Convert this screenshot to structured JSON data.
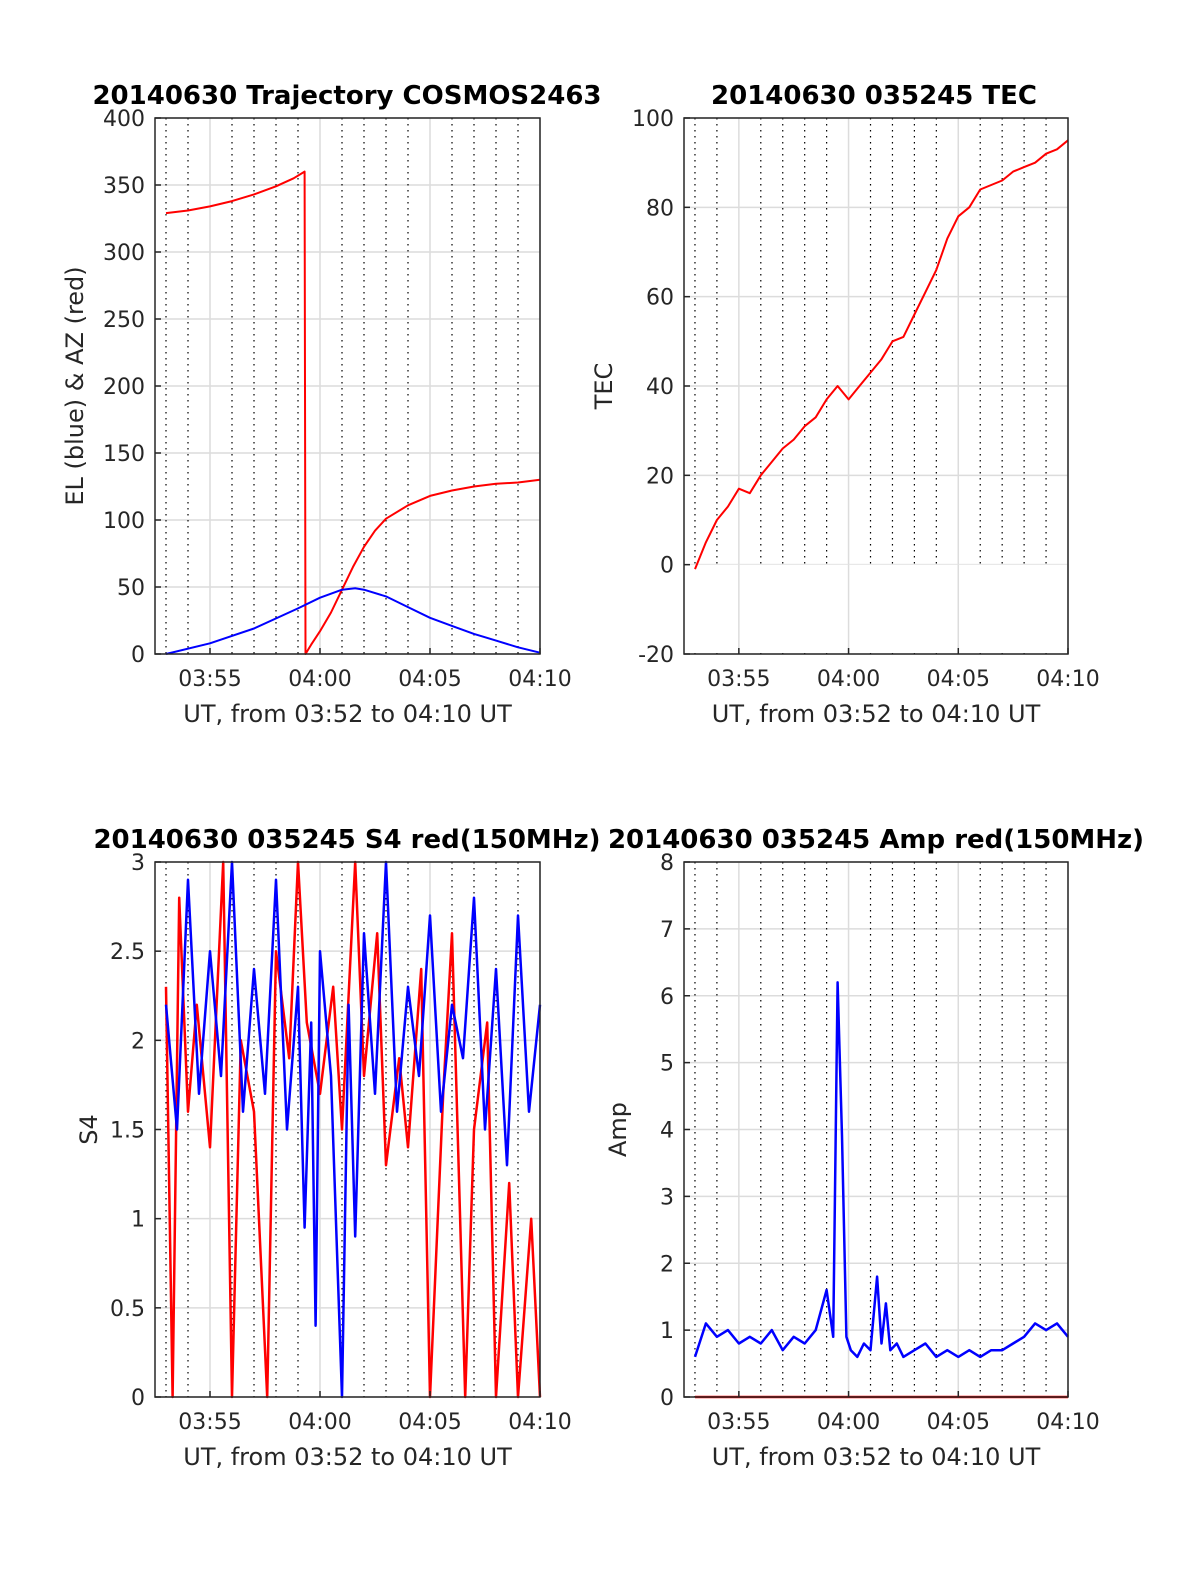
{
  "chart_data": [
    {
      "type": "line",
      "title": "20140630 Trajectory COSMOS2463",
      "xlabel": "UT, from 03:52 to 04:10 UT",
      "ylabel": "EL (blue) & AZ (red)",
      "x_unit": "minutes after 03:52 UT",
      "xlim": [
        0.5,
        18
      ],
      "ylim": [
        0,
        400
      ],
      "xticks": [
        3,
        8,
        13,
        18
      ],
      "xtick_labels": [
        "03:55",
        "04:00",
        "04:05",
        "04:10"
      ],
      "yticks": [
        0,
        50,
        100,
        150,
        200,
        250,
        300,
        350,
        400
      ],
      "ytick_labels": [
        "0",
        "50",
        "100",
        "150",
        "200",
        "250",
        "300",
        "350",
        "400"
      ],
      "grid": true,
      "series": [
        {
          "color": "#ff0000",
          "x": [
            1,
            2,
            3,
            4,
            5,
            6,
            6.8,
            7.3,
            7.34,
            7.6,
            8,
            8.5,
            9,
            9.5,
            10,
            10.5,
            11,
            12,
            13,
            14,
            15,
            16,
            17,
            18
          ],
          "y": [
            329,
            331,
            334,
            338,
            343,
            349,
            355,
            360,
            0,
            7,
            17,
            31,
            48,
            65,
            80,
            92,
            101,
            111,
            118,
            122,
            125,
            127,
            128,
            130
          ]
        },
        {
          "color": "#0000ff",
          "x": [
            1,
            3,
            5,
            7,
            8,
            9,
            9.6,
            10,
            11,
            12,
            13,
            14,
            15,
            16,
            17,
            18
          ],
          "y": [
            0,
            8,
            19,
            34,
            42,
            48,
            49,
            48,
            43,
            35,
            27,
            21,
            15,
            10,
            5,
            1
          ]
        }
      ]
    },
    {
      "type": "line",
      "title": "20140630 035245 TEC",
      "xlabel": "UT, from 03:52 to 04:10 UT",
      "ylabel": "TEC",
      "x_unit": "minutes after 03:52 UT",
      "xlim": [
        0.5,
        18
      ],
      "ylim": [
        -20,
        100
      ],
      "xticks": [
        3,
        8,
        13,
        18
      ],
      "xtick_labels": [
        "03:55",
        "04:00",
        "04:05",
        "04:10"
      ],
      "yticks": [
        -20,
        0,
        20,
        40,
        60,
        80,
        100
      ],
      "ytick_labels": [
        "-20",
        "0",
        "20",
        "40",
        "60",
        "80",
        "100"
      ],
      "grid": true,
      "series": [
        {
          "color": "#ff0000",
          "x": [
            1,
            1.5,
            2,
            2.5,
            3,
            3.5,
            4,
            4.5,
            5,
            5.5,
            6,
            6.5,
            7,
            7.5,
            8,
            8.5,
            9,
            9.5,
            10,
            10.5,
            11,
            11.5,
            12,
            12.5,
            13,
            13.5,
            14,
            14.5,
            15,
            15.5,
            16,
            16.5,
            17,
            17.5,
            18
          ],
          "y": [
            -1,
            5,
            10,
            13,
            17,
            16,
            20,
            23,
            26,
            28,
            31,
            33,
            37,
            40,
            37,
            40,
            43,
            46,
            50,
            51,
            56,
            61,
            66,
            73,
            78,
            80,
            84,
            85,
            86,
            88,
            89,
            90,
            92,
            93,
            95
          ]
        }
      ]
    },
    {
      "type": "line",
      "title": "20140630 035245 S4 red(150MHz)",
      "xlabel": "UT, from 03:52 to 04:10 UT",
      "ylabel": "S4",
      "x_unit": "minutes after 03:52 UT",
      "xlim": [
        0.5,
        18
      ],
      "ylim": [
        0,
        3
      ],
      "xticks": [
        3,
        8,
        13,
        18
      ],
      "xtick_labels": [
        "03:55",
        "04:00",
        "04:05",
        "04:10"
      ],
      "yticks": [
        0,
        0.5,
        1,
        1.5,
        2,
        2.5,
        3
      ],
      "ytick_labels": [
        "0",
        "0.5",
        "1",
        "1.5",
        "2",
        "2.5",
        "3"
      ],
      "grid": true,
      "series": [
        {
          "color": "#ff0000",
          "x": [
            1,
            1.3,
            1.6,
            2,
            2.4,
            3,
            3.6,
            4,
            4.4,
            5,
            5.6,
            6,
            6.6,
            7,
            7.4,
            8,
            8.6,
            9,
            9.6,
            10,
            10.6,
            11,
            11.6,
            12,
            12.6,
            13,
            13.6,
            14,
            14.6,
            15,
            15.6,
            16,
            16.6,
            17,
            17.6,
            18
          ],
          "y": [
            2.3,
            0,
            2.8,
            1.6,
            2.2,
            1.4,
            3,
            0,
            2.0,
            1.6,
            0,
            2.5,
            1.9,
            3,
            2.1,
            1.7,
            2.3,
            1.5,
            3,
            1.8,
            2.6,
            1.3,
            1.9,
            1.4,
            2.4,
            0,
            1.7,
            2.6,
            0,
            1.5,
            2.1,
            0,
            1.2,
            0,
            1.0,
            0
          ]
        },
        {
          "color": "#0000ff",
          "x": [
            1,
            1.5,
            2,
            2.5,
            3,
            3.5,
            4,
            4.5,
            5,
            5.5,
            6,
            6.5,
            7,
            7.3,
            7.6,
            7.8,
            8,
            8.5,
            9,
            9.3,
            9.6,
            10,
            10.5,
            11,
            11.5,
            12,
            12.5,
            13,
            13.5,
            14,
            14.5,
            15,
            15.5,
            16,
            16.5,
            17,
            17.5,
            18
          ],
          "y": [
            2.2,
            1.5,
            2.9,
            1.7,
            2.5,
            1.8,
            3,
            1.6,
            2.4,
            1.7,
            2.9,
            1.5,
            2.3,
            0.95,
            2.1,
            0.4,
            2.5,
            1.8,
            0,
            2.2,
            0.9,
            2.6,
            1.7,
            3,
            1.6,
            2.3,
            1.8,
            2.7,
            1.6,
            2.2,
            1.9,
            2.8,
            1.5,
            2.4,
            1.3,
            2.7,
            1.6,
            2.2
          ]
        }
      ]
    },
    {
      "type": "line",
      "title": "20140630 035245 Amp red(150MHz)",
      "xlabel": "UT, from 03:52 to 04:10 UT",
      "ylabel": "Amp",
      "x_unit": "minutes after 03:52 UT",
      "xlim": [
        0.5,
        18
      ],
      "ylim": [
        0,
        8
      ],
      "xticks": [
        3,
        8,
        13,
        18
      ],
      "xtick_labels": [
        "03:55",
        "04:00",
        "04:05",
        "04:10"
      ],
      "yticks": [
        0,
        1,
        2,
        3,
        4,
        5,
        6,
        7,
        8
      ],
      "ytick_labels": [
        "0",
        "1",
        "2",
        "3",
        "4",
        "5",
        "6",
        "7",
        "8"
      ],
      "grid": true,
      "series": [
        {
          "color": "#ff0000",
          "x": [
            1,
            18
          ],
          "y": [
            0,
            0
          ]
        },
        {
          "color": "#0000ff",
          "x": [
            1,
            1.5,
            2,
            2.5,
            3,
            3.5,
            4,
            4.5,
            5,
            5.5,
            6,
            6.5,
            7,
            7.3,
            7.5,
            7.7,
            7.9,
            8.1,
            8.4,
            8.7,
            9,
            9.3,
            9.5,
            9.7,
            9.9,
            10.2,
            10.5,
            11,
            11.5,
            12,
            12.5,
            13,
            13.5,
            14,
            14.5,
            15,
            15.5,
            16,
            16.5,
            17,
            17.5,
            18
          ],
          "y": [
            0.6,
            1.1,
            0.9,
            1.0,
            0.8,
            0.9,
            0.8,
            1.0,
            0.7,
            0.9,
            0.8,
            1.0,
            1.6,
            0.9,
            6.2,
            3.9,
            0.9,
            0.7,
            0.6,
            0.8,
            0.7,
            1.8,
            0.8,
            1.4,
            0.7,
            0.8,
            0.6,
            0.7,
            0.8,
            0.6,
            0.7,
            0.6,
            0.7,
            0.6,
            0.7,
            0.7,
            0.8,
            0.9,
            1.1,
            1.0,
            1.1,
            0.9
          ]
        }
      ]
    }
  ]
}
